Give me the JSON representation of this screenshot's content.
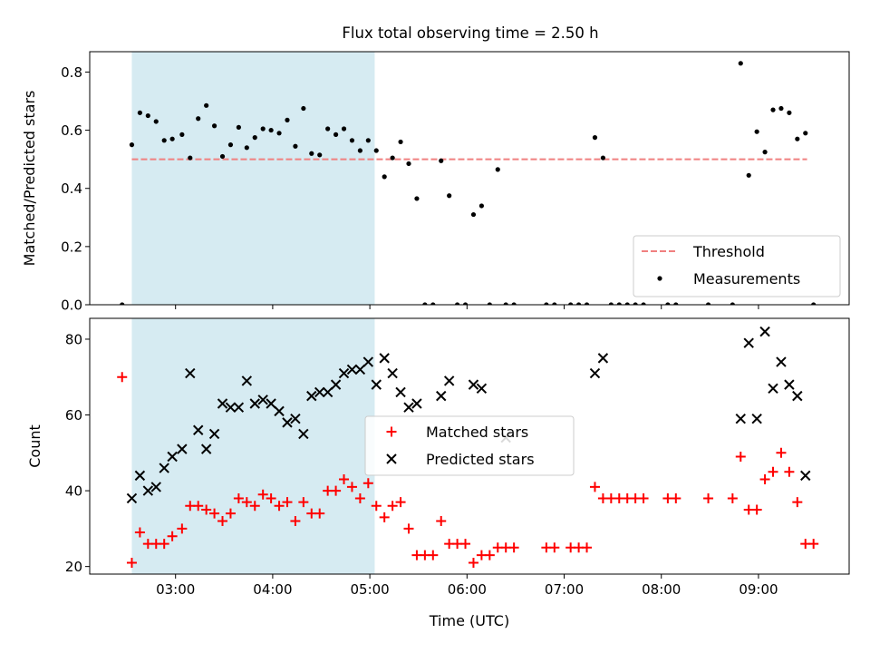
{
  "figure_title": "Flux total observing time = 2.50 h",
  "colors": {
    "threshold": "#f08080",
    "shade": "#add8e6",
    "measurement": "#000000",
    "matched": "#ff0000",
    "predicted": "#000000"
  },
  "chart_data": [
    {
      "type": "scatter",
      "title": "Flux total observing time = 2.50 h",
      "xlabel": "",
      "ylabel": "Matched/Predicted stars",
      "ylim": [
        0,
        0.87
      ],
      "xlim": [
        "02:07",
        "09:56"
      ],
      "yticks": [
        0.0,
        0.2,
        0.4,
        0.6,
        0.8
      ],
      "ytick_labels": [
        "0.0",
        "0.2",
        "0.4",
        "0.6",
        "0.8"
      ],
      "shaded_interval": [
        "02:33",
        "05:03"
      ],
      "threshold": 0.5,
      "threshold_x_range": [
        "02:33",
        "09:30"
      ],
      "legend": {
        "placement": "lower-right",
        "entries": [
          "Threshold",
          "Measurements"
        ]
      },
      "series": [
        {
          "name": "Measurements",
          "x": [
            "02:27",
            "02:33",
            "02:38",
            "02:43",
            "02:48",
            "02:53",
            "02:58",
            "03:04",
            "03:09",
            "03:14",
            "03:19",
            "03:24",
            "03:29",
            "03:34",
            "03:39",
            "03:44",
            "03:49",
            "03:54",
            "03:59",
            "04:04",
            "04:09",
            "04:14",
            "04:19",
            "04:24",
            "04:29",
            "04:34",
            "04:39",
            "04:44",
            "04:49",
            "04:54",
            "04:59",
            "05:04",
            "05:09",
            "05:14",
            "05:19",
            "05:24",
            "05:29",
            "05:34",
            "05:39",
            "05:44",
            "05:49",
            "05:54",
            "05:59",
            "06:04",
            "06:09",
            "06:14",
            "06:19",
            "06:24",
            "06:29",
            "06:49",
            "06:54",
            "07:04",
            "07:09",
            "07:14",
            "07:19",
            "07:24",
            "07:29",
            "07:34",
            "07:39",
            "07:44",
            "07:49",
            "08:04",
            "08:09",
            "08:29",
            "08:44",
            "08:49",
            "08:54",
            "08:59",
            "09:04",
            "09:09",
            "09:14",
            "09:19",
            "09:24",
            "09:29",
            "09:34"
          ],
          "y": [
            0.0,
            0.55,
            0.66,
            0.65,
            0.63,
            0.565,
            0.57,
            0.585,
            0.505,
            0.64,
            0.685,
            0.615,
            0.51,
            0.55,
            0.61,
            0.54,
            0.575,
            0.605,
            0.6,
            0.59,
            0.635,
            0.545,
            0.675,
            0.52,
            0.515,
            0.605,
            0.585,
            0.605,
            0.565,
            0.53,
            0.565,
            0.53,
            0.44,
            0.505,
            0.56,
            0.485,
            0.365,
            0.0,
            0.0,
            0.495,
            0.375,
            0.0,
            0.0,
            0.31,
            0.34,
            0.0,
            0.465,
            0.0,
            0.0,
            0.0,
            0.0,
            0.0,
            0.0,
            0.0,
            0.575,
            0.505,
            0.0,
            0.0,
            0.0,
            0.0,
            0.0,
            0.0,
            0.0,
            0.0,
            0.0,
            0.83,
            0.445,
            0.595,
            0.525,
            0.67,
            0.675,
            0.66,
            0.57,
            0.59,
            0.0
          ]
        }
      ]
    },
    {
      "type": "scatter",
      "title": "",
      "xlabel": "Time (UTC)",
      "ylabel": "Count",
      "ylim": [
        18,
        85.5
      ],
      "xlim": [
        "02:07",
        "09:56"
      ],
      "yticks": [
        20,
        40,
        60,
        80
      ],
      "ytick_labels": [
        "20",
        "40",
        "60",
        "80"
      ],
      "xticks": [
        "03:00",
        "04:00",
        "05:00",
        "06:00",
        "07:00",
        "08:00",
        "09:00"
      ],
      "xtick_labels": [
        "03:00",
        "04:00",
        "05:00",
        "06:00",
        "07:00",
        "08:00",
        "09:00"
      ],
      "shaded_interval": [
        "02:33",
        "05:03"
      ],
      "legend": {
        "placement": "center",
        "entries": [
          "Matched stars",
          "Predicted stars"
        ]
      },
      "series": [
        {
          "name": "Matched stars",
          "x": [
            "02:27",
            "02:33",
            "02:38",
            "02:43",
            "02:48",
            "02:53",
            "02:58",
            "03:04",
            "03:09",
            "03:14",
            "03:19",
            "03:24",
            "03:29",
            "03:34",
            "03:39",
            "03:44",
            "03:49",
            "03:54",
            "03:59",
            "04:04",
            "04:09",
            "04:14",
            "04:19",
            "04:24",
            "04:29",
            "04:34",
            "04:39",
            "04:44",
            "04:49",
            "04:54",
            "04:59",
            "05:04",
            "05:09",
            "05:14",
            "05:19",
            "05:24",
            "05:29",
            "05:34",
            "05:39",
            "05:44",
            "05:49",
            "05:54",
            "05:59",
            "06:04",
            "06:09",
            "06:14",
            "06:19",
            "06:24",
            "06:29",
            "06:49",
            "06:54",
            "07:04",
            "07:09",
            "07:14",
            "07:19",
            "07:24",
            "07:29",
            "07:34",
            "07:39",
            "07:44",
            "07:49",
            "08:04",
            "08:09",
            "08:29",
            "08:44",
            "08:49",
            "08:54",
            "08:59",
            "09:04",
            "09:09",
            "09:14",
            "09:19",
            "09:24",
            "09:29",
            "09:34"
          ],
          "y": [
            70,
            21,
            29,
            26,
            26,
            26,
            28,
            30,
            36,
            36,
            35,
            34,
            32,
            34,
            38,
            37,
            36,
            39,
            38,
            36,
            37,
            32,
            37,
            34,
            34,
            40,
            40,
            43,
            41,
            38,
            42,
            36,
            33,
            36,
            37,
            30,
            23,
            23,
            23,
            32,
            26,
            26,
            26,
            21,
            23,
            23,
            25,
            25,
            25,
            25,
            25,
            25,
            25,
            25,
            41,
            38,
            38,
            38,
            38,
            38,
            38,
            38,
            38,
            38,
            38,
            49,
            35,
            35,
            43,
            45,
            50,
            45,
            37,
            26,
            26
          ]
        },
        {
          "name": "Predicted stars",
          "x": [
            "02:33",
            "02:38",
            "02:43",
            "02:48",
            "02:53",
            "02:58",
            "03:04",
            "03:09",
            "03:14",
            "03:19",
            "03:24",
            "03:29",
            "03:34",
            "03:39",
            "03:44",
            "03:49",
            "03:54",
            "03:59",
            "04:04",
            "04:09",
            "04:14",
            "04:19",
            "04:24",
            "04:29",
            "04:34",
            "04:39",
            "04:44",
            "04:49",
            "04:54",
            "04:59",
            "05:04",
            "05:09",
            "05:14",
            "05:19",
            "05:24",
            "05:29",
            "05:44",
            "05:49",
            "06:04",
            "06:09",
            "06:24",
            "07:19",
            "07:24",
            "08:49",
            "08:54",
            "08:59",
            "09:04",
            "09:09",
            "09:14",
            "09:19",
            "09:24",
            "09:29"
          ],
          "y": [
            38,
            44,
            40,
            41,
            46,
            49,
            51,
            71,
            56,
            51,
            55,
            63,
            62,
            62,
            69,
            63,
            64,
            63,
            61,
            58,
            59,
            55,
            65,
            66,
            66,
            68,
            71,
            72,
            72,
            74,
            68,
            75,
            71,
            66,
            62,
            63,
            65,
            69,
            68,
            67,
            54,
            71,
            75,
            59,
            79,
            59,
            82,
            67,
            74,
            68,
            65,
            44
          ]
        }
      ]
    }
  ]
}
